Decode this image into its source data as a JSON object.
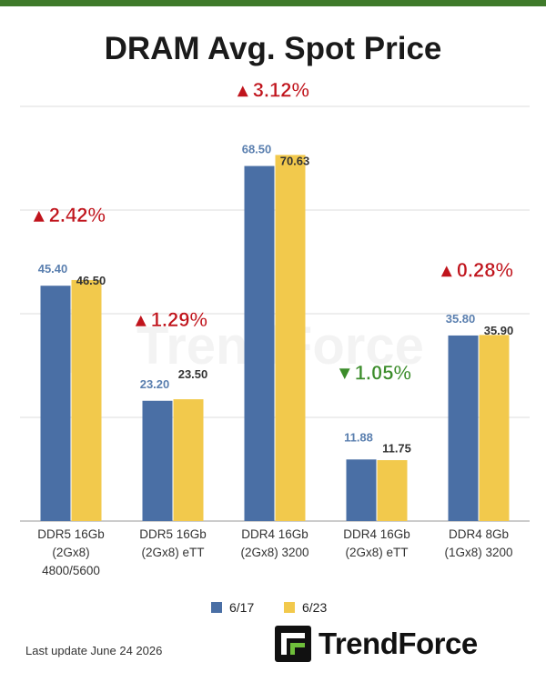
{
  "chart_data": {
    "type": "bar",
    "title": "DRAM Avg. Spot Price",
    "categories": [
      [
        "DDR5 16Gb",
        "(2Gx8)",
        "4800/5600"
      ],
      [
        "DDR5 16Gb",
        "(2Gx8) eTT"
      ],
      [
        "DDR4 16Gb",
        "(2Gx8) 3200"
      ],
      [
        "DDR4 16Gb",
        "(2Gx8) eTT"
      ],
      [
        "DDR4 8Gb",
        "(1Gx8) 3200"
      ]
    ],
    "series": [
      {
        "name": "6/17",
        "values": [
          45.4,
          23.2,
          68.5,
          11.88,
          35.8
        ],
        "labels": [
          "45.40",
          "23.20",
          "68.50",
          "11.88",
          "35.80"
        ],
        "color": "#4a6fa5"
      },
      {
        "name": "6/23",
        "values": [
          46.5,
          23.5,
          70.63,
          11.75,
          35.9
        ],
        "labels": [
          "46.50",
          "23.50",
          "70.63",
          "11.75",
          "35.90"
        ],
        "color": "#f2c94c"
      }
    ],
    "changes": [
      {
        "text": "▲2.42%",
        "direction": "up"
      },
      {
        "text": "▲1.29%",
        "direction": "up"
      },
      {
        "text": "▲3.12%",
        "direction": "up"
      },
      {
        "text": "▼1.05%",
        "direction": "down"
      },
      {
        "text": "▲0.28%",
        "direction": "up"
      }
    ],
    "ylim": [
      0,
      80
    ],
    "grid": true,
    "legend_position": "bottom-center",
    "colors": {
      "up": "#c0141c",
      "down": "#3b8c2a",
      "label_6_17": "#5a7faf",
      "label_6_23": "#333333"
    }
  },
  "footer": {
    "last_update": "Last update June 24 2026",
    "brand": "TrendForce",
    "watermark": "TrendForce"
  }
}
